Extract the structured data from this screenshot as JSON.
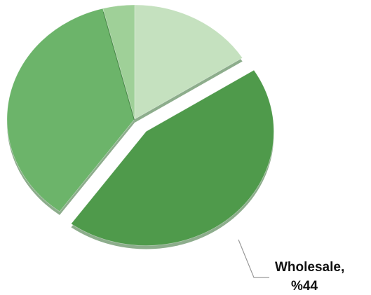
{
  "chart_data": {
    "type": "pie",
    "categories": [
      null,
      "Wholesale,",
      null,
      null
    ],
    "values": [
      16,
      44,
      36,
      4
    ],
    "value_labels": [
      null,
      "%44",
      null,
      null
    ],
    "colors": [
      "#c5e1bf",
      "#4f9a4b",
      "#6cb46a",
      "#9fd098"
    ],
    "exploded": [
      false,
      true,
      false,
      false
    ]
  }
}
